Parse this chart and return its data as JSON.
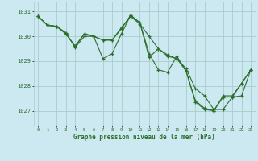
{
  "title": "Graphe pression niveau de la mer (hPa)",
  "bg_color": "#cce8f0",
  "grid_color": "#aacccc",
  "line_color": "#2d6e2d",
  "xlim": [
    -0.5,
    23.5
  ],
  "ylim": [
    1026.4,
    1031.4
  ],
  "yticks": [
    1027,
    1028,
    1029,
    1030,
    1031
  ],
  "xticks": [
    0,
    1,
    2,
    3,
    4,
    5,
    6,
    7,
    8,
    9,
    10,
    11,
    12,
    13,
    14,
    15,
    16,
    17,
    18,
    19,
    20,
    21,
    22,
    23
  ],
  "series": [
    [
      1030.8,
      1030.45,
      1030.4,
      1030.15,
      1029.55,
      1030.0,
      1030.0,
      1029.85,
      1029.85,
      1030.3,
      1030.85,
      1030.55,
      1029.15,
      1029.5,
      1029.2,
      1029.1,
      1028.6,
      1027.35,
      1027.05,
      1027.0,
      1027.6,
      1027.6,
      1028.1,
      1028.65
    ],
    [
      1030.8,
      1030.45,
      1030.4,
      1030.1,
      1029.6,
      1030.1,
      1030.0,
      1029.1,
      1029.3,
      1030.1,
      1030.85,
      1030.55,
      1029.3,
      1028.65,
      1028.55,
      1029.2,
      1028.6,
      1027.4,
      1027.1,
      1027.0,
      1027.55,
      1027.55,
      1028.1,
      1028.65
    ],
    [
      1030.8,
      1030.45,
      1030.4,
      1030.1,
      1029.6,
      1030.1,
      1030.0,
      1029.85,
      1029.85,
      1030.35,
      1030.8,
      1030.5,
      1030.0,
      1029.5,
      1029.25,
      1029.1,
      1028.7,
      1027.9,
      1027.6,
      1027.05,
      1027.05,
      1027.55,
      1027.6,
      1028.65
    ]
  ]
}
